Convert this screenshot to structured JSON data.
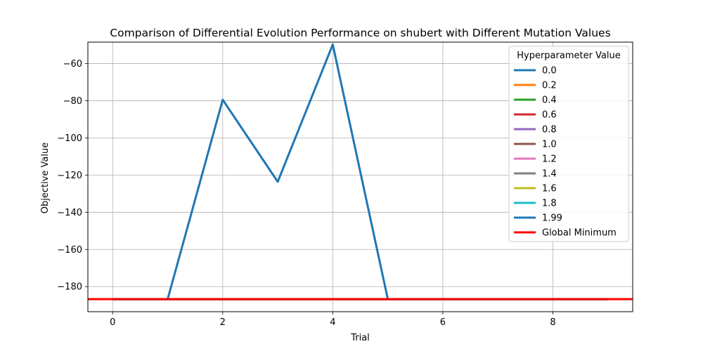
{
  "chart_data": {
    "type": "line",
    "title": "Comparison of Differential Evolution Performance on shubert with Different Mutation Values",
    "xlabel": "Trial",
    "ylabel": "Objective Value",
    "xlim": [
      -0.45,
      9.45
    ],
    "ylim": [
      -193.5,
      -48.5
    ],
    "xticks": [
      0,
      2,
      4,
      6,
      8
    ],
    "yticks": [
      -180,
      -160,
      -140,
      -120,
      -100,
      -80,
      -60
    ],
    "grid": true,
    "legend_title": "Hyperparameter Value",
    "legend_position": "top-right",
    "x": [
      0,
      1,
      2,
      3,
      4,
      5,
      6,
      7,
      8,
      9
    ],
    "series": [
      {
        "name": "0.0",
        "color": "#1f77b4",
        "values": [
          -186.73,
          -186.73,
          -186.73,
          -186.73,
          -186.73,
          -186.73,
          -186.73,
          -186.73,
          -186.73,
          -186.73
        ]
      },
      {
        "name": "0.2",
        "color": "#ff7f0e",
        "values": [
          -186.73,
          -186.73,
          -186.73,
          -186.73,
          -186.73,
          -186.73,
          -186.73,
          -186.73,
          -186.73,
          -186.73
        ]
      },
      {
        "name": "0.4",
        "color": "#2ca02c",
        "values": [
          -186.73,
          -186.73,
          -186.73,
          -186.73,
          -186.73,
          -186.73,
          -186.73,
          -186.73,
          -186.73,
          -186.73
        ]
      },
      {
        "name": "0.6",
        "color": "#d62728",
        "values": [
          -186.73,
          -186.73,
          -186.73,
          -186.73,
          -186.73,
          -186.73,
          -186.73,
          -186.73,
          -186.73,
          -186.73
        ]
      },
      {
        "name": "0.8",
        "color": "#9467bd",
        "values": [
          -186.73,
          -186.73,
          -186.73,
          -186.73,
          -186.73,
          -186.73,
          -186.73,
          -186.73,
          -186.73,
          -186.73
        ]
      },
      {
        "name": "1.0",
        "color": "#8c564b",
        "values": [
          -186.73,
          -186.73,
          -186.73,
          -186.73,
          -186.73,
          -186.73,
          -186.73,
          -186.73,
          -186.73,
          -186.73
        ]
      },
      {
        "name": "1.2",
        "color": "#e377c2",
        "values": [
          -186.73,
          -186.73,
          -186.73,
          -186.73,
          -186.73,
          -186.73,
          -186.73,
          -186.73,
          -186.73,
          -186.73
        ]
      },
      {
        "name": "1.4",
        "color": "#7f7f7f",
        "values": [
          -186.73,
          -186.73,
          -186.73,
          -186.73,
          -186.73,
          -186.73,
          -186.73,
          -186.73,
          -186.73,
          -186.73
        ]
      },
      {
        "name": "1.6",
        "color": "#bcbd22",
        "values": [
          -186.73,
          -186.73,
          -186.73,
          -186.73,
          -186.73,
          -186.73,
          -186.73,
          -186.73,
          -186.73,
          -186.73
        ]
      },
      {
        "name": "1.8",
        "color": "#17becf",
        "values": [
          -186.73,
          -186.73,
          -186.73,
          -186.73,
          -186.73,
          -186.73,
          -186.73,
          -186.73,
          -186.73,
          -186.73
        ]
      },
      {
        "name": "1.99",
        "color": "#1f77b4",
        "values": [
          -186.73,
          -186.73,
          -79.5,
          -123.6,
          -49.8,
          -186.73,
          -186.73,
          -186.73,
          -186.73,
          -186.73
        ]
      }
    ],
    "reference_line": {
      "name": "Global Minimum",
      "color": "#ff0000",
      "value": -186.73
    }
  }
}
